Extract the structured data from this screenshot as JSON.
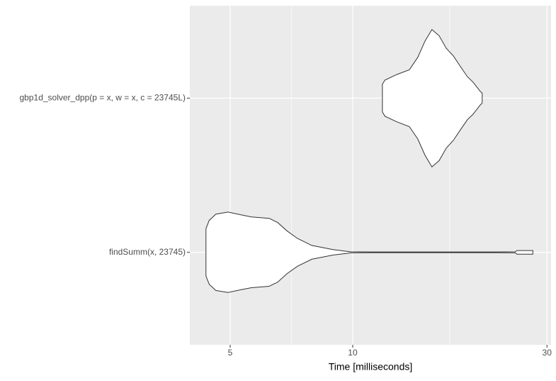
{
  "chart_data": {
    "type": "violin",
    "xlabel": "Time [milliseconds]",
    "categories": [
      "findSumm(x, 23745)",
      "gbp1d_solver_dpp(p = x, w = x, c = 23745L)"
    ],
    "violins": [
      {
        "x": [
          4.36,
          4.44,
          4.61,
          4.94,
          5.31,
          5.64,
          6.23,
          6.54,
          6.89,
          7.32,
          7.93,
          8.94,
          9.68,
          9.88,
          11.37,
          22.4,
          25.1,
          25.3,
          27.7
        ],
        "density": [
          0.34,
          0.46,
          0.55,
          0.58,
          0.54,
          0.51,
          0.49,
          0.43,
          0.31,
          0.2,
          0.1,
          0.04,
          0.015,
          0.008,
          0.005,
          0.005,
          0.008,
          0.026,
          0.026
        ]
      },
      {
        "x": [
          11.83,
          12.0,
          12.82,
          13.78,
          14.45,
          15.04,
          15.65,
          16.3,
          16.97,
          17.66,
          18.37,
          19.13,
          19.76,
          20.56,
          20.8
        ],
        "density": [
          0.2,
          0.26,
          0.34,
          0.41,
          0.59,
          0.82,
          0.99,
          0.9,
          0.72,
          0.61,
          0.46,
          0.31,
          0.23,
          0.1,
          0.07
        ]
      }
    ],
    "fill": "#ffffff",
    "line_color": "#333333",
    "xlim": [
      3.98,
      30.7
    ],
    "xticks": [
      5,
      10,
      30
    ],
    "minor_xticks": [
      7.07,
      17.3
    ],
    "log_x": true,
    "grid": true,
    "panel_color": "#ebebeb"
  }
}
